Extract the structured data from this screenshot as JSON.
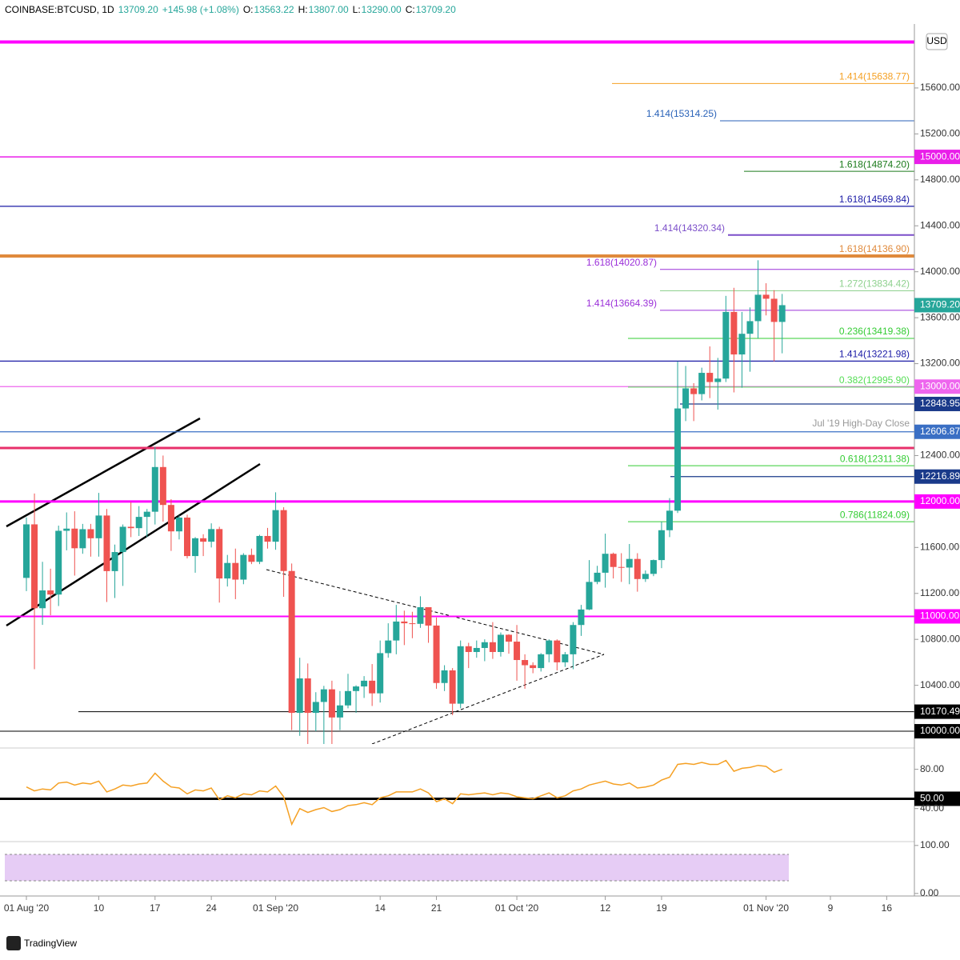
{
  "header": {
    "items": [
      "COINBASE:BTCUSD, 1D",
      "13709.20",
      "+145.98 (+1.08%)",
      "O:",
      "13563.22",
      "H:",
      "13807.00",
      "L:",
      "13290.00",
      "C:",
      "13709.20"
    ],
    "currency": "USD",
    "brand": "TradingView"
  },
  "chart_data": [
    {
      "type": "candlestick",
      "ylim": [
        9889,
        16101
      ],
      "yticks": [
        {
          "value": 15600,
          "label": "15600.00"
        },
        {
          "value": 15200,
          "label": "15200.00"
        },
        {
          "value": 14800,
          "label": "14800.00"
        },
        {
          "value": 14400,
          "label": "14400.00"
        },
        {
          "value": 14000,
          "label": "14000.00"
        },
        {
          "value": 13600,
          "label": "13600.00"
        },
        {
          "value": 13200,
          "label": "13200.00"
        },
        {
          "value": 12400,
          "label": "12400.00"
        },
        {
          "value": 11600,
          "label": "11600.00"
        },
        {
          "value": 11200,
          "label": "11200.00"
        },
        {
          "value": 10800,
          "label": "10800.00"
        },
        {
          "value": 10400,
          "label": "10400.00"
        }
      ],
      "xlim": [
        -2,
        112
      ],
      "xticks": [
        {
          "value": 0,
          "label": "01 Aug '20"
        },
        {
          "value": 9,
          "label": "10"
        },
        {
          "value": 16,
          "label": "17"
        },
        {
          "value": 23,
          "label": "24"
        },
        {
          "value": 31,
          "label": "01 Sep '20"
        },
        {
          "value": 44,
          "label": "14"
        },
        {
          "value": 51,
          "label": "21"
        },
        {
          "value": 61,
          "label": "01 Oct '20"
        },
        {
          "value": 72,
          "label": "12"
        },
        {
          "value": 79,
          "label": "19"
        },
        {
          "value": 92,
          "label": "01 Nov '20"
        },
        {
          "value": 100,
          "label": "9"
        },
        {
          "value": 107,
          "label": "16"
        }
      ],
      "up_color": "#26a69a",
      "down_color": "#ef5350",
      "open": [
        11335,
        11801,
        11071,
        11226,
        11190,
        11745,
        11764,
        11593,
        11759,
        11680,
        11878,
        11394,
        11560,
        11780,
        11768,
        11866,
        11911,
        12300,
        11970,
        11740,
        11860,
        11525,
        11680,
        11650,
        11760,
        11330,
        11465,
        11320,
        11535,
        11475,
        11700,
        11650,
        11925,
        11395,
        10160,
        10460,
        10160,
        10255,
        10365,
        10120,
        10225,
        10350,
        10390,
        10440,
        10330,
        10680,
        10790,
        10955,
        10940,
        10935,
        11080,
        10920,
        10420,
        10530,
        10240,
        10740,
        10690,
        10725,
        10775,
        10690,
        10840,
        10780,
        10620,
        10575,
        10550,
        10670,
        10790,
        10600,
        10670,
        10925,
        11060,
        11300,
        11380,
        11545,
        11430,
        11425,
        11500,
        11325,
        11370,
        11490,
        11750,
        11920,
        12810,
        12985,
        12935,
        13120,
        13040,
        13070,
        13650,
        13280,
        13460,
        13570,
        13800,
        13765,
        13563.22
      ],
      "high": [
        11862,
        12070,
        11475,
        11415,
        11790,
        11905,
        11915,
        11805,
        11805,
        12075,
        11935,
        11625,
        11800,
        11995,
        11960,
        11935,
        12475,
        12400,
        12020,
        11880,
        11885,
        11690,
        11715,
        11810,
        11780,
        11535,
        11590,
        11550,
        11590,
        11710,
        11770,
        12080,
        11950,
        11460,
        10640,
        10590,
        10340,
        10395,
        10440,
        10350,
        10500,
        10400,
        10480,
        10585,
        10790,
        10940,
        11100,
        11050,
        11040,
        11175,
        11080,
        10990,
        10575,
        10550,
        10790,
        10770,
        10790,
        10800,
        10950,
        10860,
        10845,
        10925,
        10670,
        10600,
        10680,
        10800,
        10800,
        10690,
        10950,
        11100,
        11490,
        11440,
        11720,
        11555,
        11550,
        11630,
        11550,
        11400,
        11495,
        11825,
        12030,
        13220,
        13180,
        13030,
        13165,
        13350,
        13250,
        13790,
        13860,
        13650,
        13690,
        14100,
        13900,
        13840,
        13807
      ],
      "low": [
        11220,
        10540,
        10926,
        11010,
        11090,
        11575,
        11355,
        11545,
        11520,
        11520,
        11125,
        11160,
        11265,
        11690,
        11700,
        11690,
        11800,
        11825,
        11570,
        11670,
        11505,
        11380,
        11525,
        11600,
        11120,
        11260,
        11150,
        11280,
        11455,
        11455,
        11590,
        11580,
        11170,
        10010,
        9960,
        9880,
        10000,
        9880,
        9860,
        10010,
        10200,
        10160,
        10290,
        10220,
        10250,
        10640,
        10670,
        10750,
        10810,
        10900,
        10770,
        10370,
        10350,
        10140,
        10200,
        10550,
        10640,
        10610,
        10630,
        10650,
        10675,
        10440,
        10370,
        10505,
        10520,
        10600,
        10530,
        10560,
        10540,
        10830,
        11055,
        11280,
        11250,
        11330,
        11300,
        11280,
        11215,
        11300,
        11350,
        11420,
        11690,
        11900,
        12700,
        12700,
        12880,
        12900,
        12800,
        13040,
        12950,
        12990,
        13130,
        13420,
        13620,
        13220,
        13290
      ],
      "close": [
        11801,
        11071,
        11226,
        11190,
        11745,
        11764,
        11593,
        11759,
        11680,
        11878,
        11394,
        11560,
        11780,
        11768,
        11866,
        11911,
        12300,
        11970,
        11740,
        11860,
        11525,
        11680,
        11650,
        11760,
        11330,
        11465,
        11320,
        11535,
        11475,
        11700,
        11650,
        11925,
        11395,
        10160,
        10460,
        10160,
        10255,
        10365,
        10120,
        10225,
        10350,
        10390,
        10440,
        10330,
        10680,
        10790,
        10955,
        10940,
        10935,
        11080,
        10920,
        10420,
        10530,
        10240,
        10740,
        10690,
        10725,
        10775,
        10690,
        10840,
        10780,
        10620,
        10575,
        10550,
        10670,
        10790,
        10600,
        10670,
        10925,
        11060,
        11300,
        11380,
        11545,
        11430,
        11425,
        11500,
        11325,
        11370,
        11490,
        11750,
        11920,
        12810,
        12985,
        12935,
        13120,
        13040,
        13070,
        13650,
        13280,
        13460,
        13570,
        13800,
        13765,
        13563.22,
        13709.2
      ],
      "price_label": "13709.20",
      "levels": [
        {
          "value": 16000,
          "color": "#ff00ff"
        },
        {
          "value": 15638.77,
          "color": "#f5a023",
          "label": "1.414(15638.77)"
        },
        {
          "value": 15314.25,
          "color": "#2962b8",
          "label": "1.414(15314.25)"
        },
        {
          "value": 15000,
          "color": "#e91ee9",
          "badge": "15000.00"
        },
        {
          "value": 14874.2,
          "color": "#1b7a1b",
          "label": "1.618(14874.20)"
        },
        {
          "value": 14569.84,
          "color": "#1a1aa6",
          "label": "1.618(14569.84)"
        },
        {
          "value": 14320.34,
          "color": "#7b4ec9",
          "label": "1.414(14320.34)"
        },
        {
          "value": 14136.9,
          "color": "#e08a3c",
          "label": "1.618(14136.90)"
        },
        {
          "value": 14020.87,
          "color": "#9b30d9",
          "label": "1.618(14020.87)"
        },
        {
          "value": 13834.42,
          "color": "#8fd18f",
          "label": "1.272(13834.42)"
        },
        {
          "value": 13664.39,
          "color": "#9b30d9",
          "label": "1.414(13664.39)"
        },
        {
          "value": 13419.38,
          "color": "#33cc33",
          "label": "0.236(13419.38)"
        },
        {
          "value": 13221.98,
          "color": "#1a1aa6",
          "label": "1.414(13221.98)"
        },
        {
          "value": 13000,
          "color": "#ee66ee",
          "badge": "13000.00"
        },
        {
          "value": 12995.9,
          "color": "#55dd55",
          "label": "0.382(12995.90)"
        },
        {
          "value": 12848.95,
          "color": "#1a3a8a",
          "badge": "12848.95"
        },
        {
          "value": 12606.87,
          "color": "#3a6fc4",
          "badge": "12606.87",
          "label": "Jul '19 High-Day Close"
        },
        {
          "value": 12466,
          "color": "#e8306b"
        },
        {
          "value": 12311.38,
          "color": "#33cc33",
          "label": "0.618(12311.38)"
        },
        {
          "value": 12216.89,
          "color": "#1a3a8a",
          "badge": "12216.89"
        },
        {
          "value": 12000,
          "color": "#ff00ff",
          "badge": "12000.00"
        },
        {
          "value": 11824.09,
          "color": "#33cc33",
          "label": "0.786(11824.09)"
        },
        {
          "value": 11000,
          "color": "#ff00ff",
          "badge": "11000.00"
        },
        {
          "value": 10170.49,
          "color": "#000000",
          "badge": "10170.49"
        },
        {
          "value": 10000,
          "color": "#000000",
          "badge": "10000.00"
        }
      ]
    },
    {
      "type": "line",
      "ylim": [
        8,
        96
      ],
      "yticks": [
        {
          "value": 80,
          "label": "80.00"
        },
        {
          "value": 50,
          "label": "50.00"
        },
        {
          "value": 40,
          "label": "40.00"
        }
      ],
      "series": [
        {
          "color": "#f5a023",
          "values": [
            62,
            58,
            60,
            59,
            66,
            67,
            64,
            66,
            65,
            68,
            57,
            60,
            64,
            63,
            65,
            66,
            76,
            68,
            62,
            61,
            55,
            59,
            58,
            61,
            49,
            53,
            51,
            55,
            54,
            58,
            57,
            63,
            52,
            24,
            40,
            36,
            39,
            41,
            37,
            39,
            43,
            44,
            46,
            44,
            51,
            53,
            57,
            57,
            57,
            60,
            56,
            47,
            50,
            45,
            55,
            54,
            55,
            56,
            54,
            56,
            55,
            52,
            51,
            50,
            53,
            56,
            51,
            53,
            58,
            60,
            64,
            66,
            68,
            65,
            64,
            66,
            61,
            62,
            64,
            69,
            72,
            85,
            86,
            85,
            87,
            85,
            85,
            89,
            78,
            81,
            82,
            84,
            83,
            77,
            80
          ]
        }
      ]
    },
    {
      "type": "line",
      "ylim": [
        -2,
        108
      ],
      "yticks": [
        {
          "value": 100,
          "label": "100.00"
        },
        {
          "value": 0,
          "label": "0.00"
        }
      ]
    }
  ]
}
